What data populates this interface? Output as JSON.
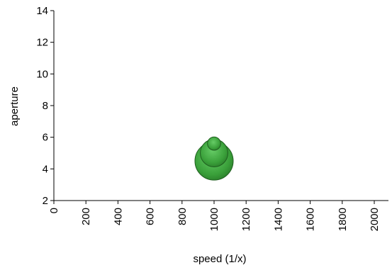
{
  "chart_data": {
    "type": "scatter",
    "title": "",
    "xlabel": "speed (1/x)",
    "ylabel": "aperture",
    "xlim": [
      0,
      2000
    ],
    "ylim": [
      2,
      14
    ],
    "x_ticks": [
      0,
      200,
      400,
      600,
      800,
      1000,
      1200,
      1400,
      1600,
      1800,
      2000
    ],
    "x_tick_labels": [
      "0",
      "200",
      "400",
      "600",
      "800",
      "1000",
      "1200",
      "1400",
      "1600",
      "1800",
      "2000"
    ],
    "y_ticks": [
      2,
      4,
      6,
      8,
      10,
      12,
      14
    ],
    "y_tick_labels": [
      "2",
      "4",
      "6",
      "8",
      "10",
      "12",
      "14"
    ],
    "grid": false,
    "legend": "none",
    "bubble_color": "#3aa03a",
    "points": [
      {
        "x": 1000,
        "y": 4.5,
        "size": 1.0
      },
      {
        "x": 1000,
        "y": 5.0,
        "size": 0.52
      },
      {
        "x": 1000,
        "y": 5.6,
        "size": 0.12
      }
    ]
  }
}
